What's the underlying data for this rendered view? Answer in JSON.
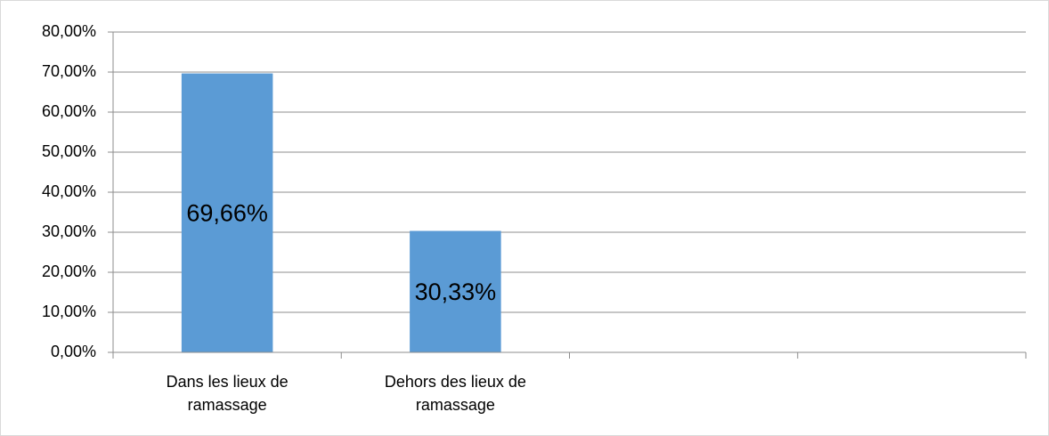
{
  "chart_data": {
    "type": "bar",
    "categories": [
      "Dans les lieux de ramassage",
      "Dehors des lieux de ramassage",
      null,
      null
    ],
    "values": [
      69.66,
      30.33,
      null,
      null
    ],
    "value_labels": [
      "69,66%",
      "30,33%",
      null,
      null
    ],
    "color": "#5b9bd5",
    "ylim": [
      0,
      80
    ],
    "yticks": [
      {
        "value": 0,
        "label": "0,00%"
      },
      {
        "value": 10,
        "label": "10,00%"
      },
      {
        "value": 20,
        "label": "20,00%"
      },
      {
        "value": 30,
        "label": "30,00%"
      },
      {
        "value": 40,
        "label": "40,00%"
      },
      {
        "value": 50,
        "label": "50,00%"
      },
      {
        "value": 60,
        "label": "60,00%"
      },
      {
        "value": 70,
        "label": "70,00%"
      },
      {
        "value": 80,
        "label": "80,00%"
      }
    ],
    "grid": true
  }
}
